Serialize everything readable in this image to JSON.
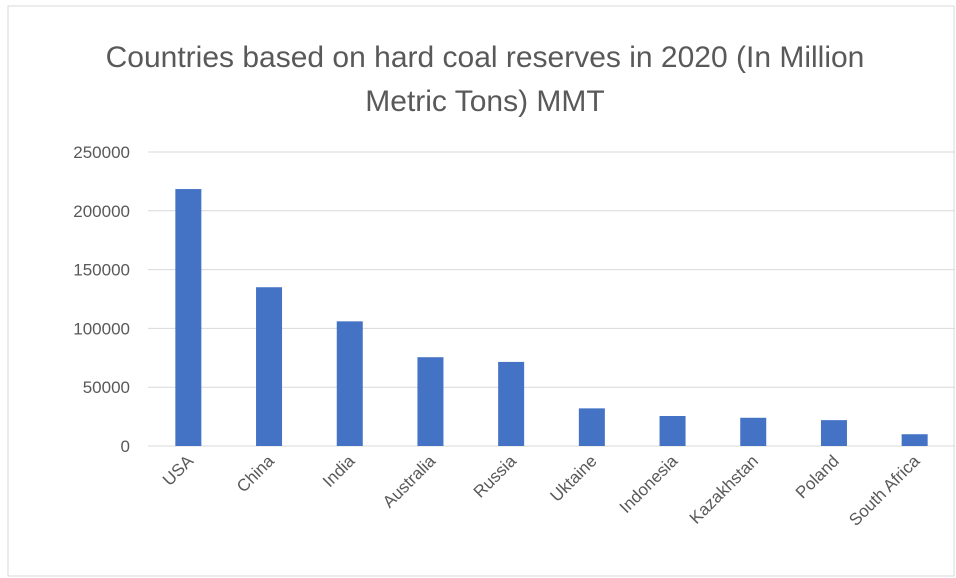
{
  "chart_data": {
    "type": "bar",
    "title": "Countries based on hard coal reserves in 2020 (In Million Metric Tons) MMT",
    "categories": [
      "USA",
      "China",
      "India",
      "Australia",
      "Russia",
      "Uktaine",
      "Indonesia",
      "Kazakhstan",
      "Poland",
      "South Africa"
    ],
    "values": [
      218500,
      135000,
      106000,
      75500,
      71500,
      32000,
      25500,
      24000,
      22000,
      10000
    ],
    "color": "#4472c4",
    "ylim": [
      0,
      250000
    ],
    "yticks": [
      0,
      50000,
      100000,
      150000,
      200000,
      250000
    ],
    "grid": true
  }
}
